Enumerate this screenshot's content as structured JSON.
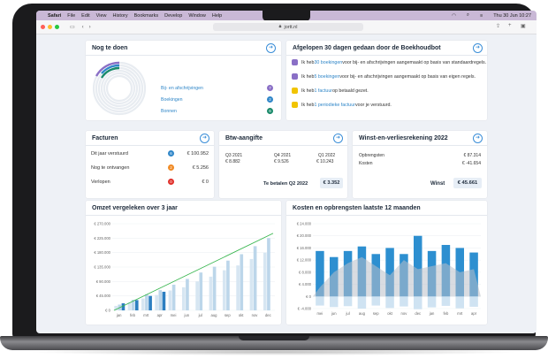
{
  "menubar": {
    "apple": "",
    "app": "Safari",
    "items": [
      "File",
      "Edit",
      "View",
      "History",
      "Bookmarks",
      "Develop",
      "Window",
      "Help"
    ],
    "clock": "Thu 30 Jun 10:27"
  },
  "browser": {
    "url": "jortt.nl"
  },
  "todo": {
    "title": "Nog te doen",
    "items": [
      {
        "label": "Bij- en afschrijvingen",
        "count": "7",
        "color": "#8a6fc6"
      },
      {
        "label": "Boekingen",
        "count": "2",
        "color": "#2f86c8"
      },
      {
        "label": "Bonnen",
        "count": "6",
        "color": "#1a8a6a"
      }
    ]
  },
  "boekhoudbot": {
    "title": "Afgelopen 30 dagen gedaan door de Boekhoudbot",
    "rows": [
      {
        "pre": "Ik heb ",
        "link": "30 boekingen",
        "post": " voor bij- en afschrijvingen aangemaakt op basis van standaardregels.",
        "color": "#8a6fc6"
      },
      {
        "pre": "Ik heb ",
        "link": "5 boekingen",
        "post": " voor bij- en afschrijvingen aangemaakt op basis van eigen regels.",
        "color": "#8a6fc6"
      },
      {
        "pre": "Ik heb ",
        "link": "1 factuur",
        "post": " op betaald gezet.",
        "color": "#f1c400"
      },
      {
        "pre": "Ik heb ",
        "link": "1 periodieke factuur",
        "post": " voor je verstuurd.",
        "color": "#f1c400"
      }
    ]
  },
  "facturen": {
    "title": "Facturen",
    "rows": [
      {
        "label": "Dit jaar verstuurd",
        "count": "6",
        "badge_color": "#2f86c8",
        "value": "€ 100.952"
      },
      {
        "label": "Nog te ontvangen",
        "count": "2",
        "badge_color": "#f08a24",
        "value": "€ 5.256"
      },
      {
        "label": "Verlopen",
        "count": "0",
        "badge_color": "#e0302a",
        "value": "€ 0"
      }
    ]
  },
  "btw": {
    "title": "Btw-aangifte",
    "quarters": [
      {
        "label": "Q3 2021",
        "value": "€ 8.882"
      },
      {
        "label": "Q4 2021",
        "value": "€ 9.526"
      },
      {
        "label": "Q1 2022",
        "value": "€ 10.243"
      }
    ],
    "total_label": "Te betalen Q2 2022",
    "total_value": "€ 3.352"
  },
  "winst": {
    "title": "Winst-en-verliesrekening 2022",
    "rows": [
      {
        "label": "Opbrengsten",
        "value": "€ 87.314"
      },
      {
        "label": "Kosten",
        "value": "€ -41.654"
      }
    ],
    "total_label": "Winst",
    "total_value": "€ 45.661"
  },
  "omzet": {
    "title": "Omzet vergeleken over 3 jaar"
  },
  "kosten": {
    "title": "Kosten en opbrengsten laatste 12 maanden"
  },
  "chart_data": [
    {
      "type": "bar",
      "title": "Omzet vergeleken over 3 jaar",
      "categories": [
        "jan",
        "feb",
        "mrt",
        "apr",
        "mei",
        "jun",
        "jul",
        "aug",
        "sep",
        "okt",
        "nov",
        "dec"
      ],
      "y_ticks": [
        "€ 0",
        "€ 45.000",
        "€ 90.000",
        "€ 135.000",
        "€ 180.000",
        "€ 225.000",
        "€ 270.000"
      ],
      "ylim": [
        0,
        270000
      ],
      "series": [
        {
          "values": [
            14000,
            25000,
            37000,
            48000,
            62000,
            72000,
            90000,
            105000,
            125000,
            140000,
            160000,
            180000
          ]
        },
        {
          "values": [
            18000,
            33000,
            50000,
            63000,
            80000,
            98000,
            118000,
            136000,
            155000,
            175000,
            200000,
            225000
          ]
        },
        {
          "values": [
            22000,
            32000,
            45000,
            58000,
            0,
            0,
            0,
            0,
            0,
            0,
            0,
            0
          ]
        }
      ],
      "trend_line": {
        "from": 0,
        "to": 240000
      },
      "colors": {
        "prev": "#d7e6f2",
        "mid": "#bcd6ea",
        "current": "#2d7fc1",
        "trend": "#33b44a"
      }
    },
    {
      "type": "bar",
      "title": "Kosten en opbrengsten laatste 12 maanden",
      "categories": [
        "mei",
        "jun",
        "jul",
        "aug",
        "sep",
        "okt",
        "nov",
        "dec",
        "jan",
        "feb",
        "mrt",
        "apr"
      ],
      "y_ticks": [
        "€ -4.000",
        "€ 0",
        "€ 4.000",
        "€ 8.000",
        "€ 12.000",
        "€ 16.000",
        "€ 20.000",
        "€ 24.000"
      ],
      "ylim": [
        -4000,
        24000
      ],
      "series": [
        {
          "values": [
            15000,
            13000,
            15000,
            16500,
            14000,
            16000,
            14000,
            20000,
            15000,
            17000,
            16000,
            14500
          ]
        },
        {
          "values": [
            -3000,
            -3500,
            -3200,
            -4000,
            -3000,
            -3800,
            -3300,
            -4200,
            -3600,
            -3100,
            -3900,
            -3400
          ]
        }
      ],
      "area": {
        "values": [
          3000,
          8000,
          11000,
          13000,
          10000,
          7000,
          12000,
          9000,
          10000,
          11000,
          8000,
          9000
        ]
      },
      "colors": {
        "opbrengsten": "#2d8fd0",
        "kosten": "#cfe3f2",
        "area": "#b9bfc8"
      }
    }
  ]
}
